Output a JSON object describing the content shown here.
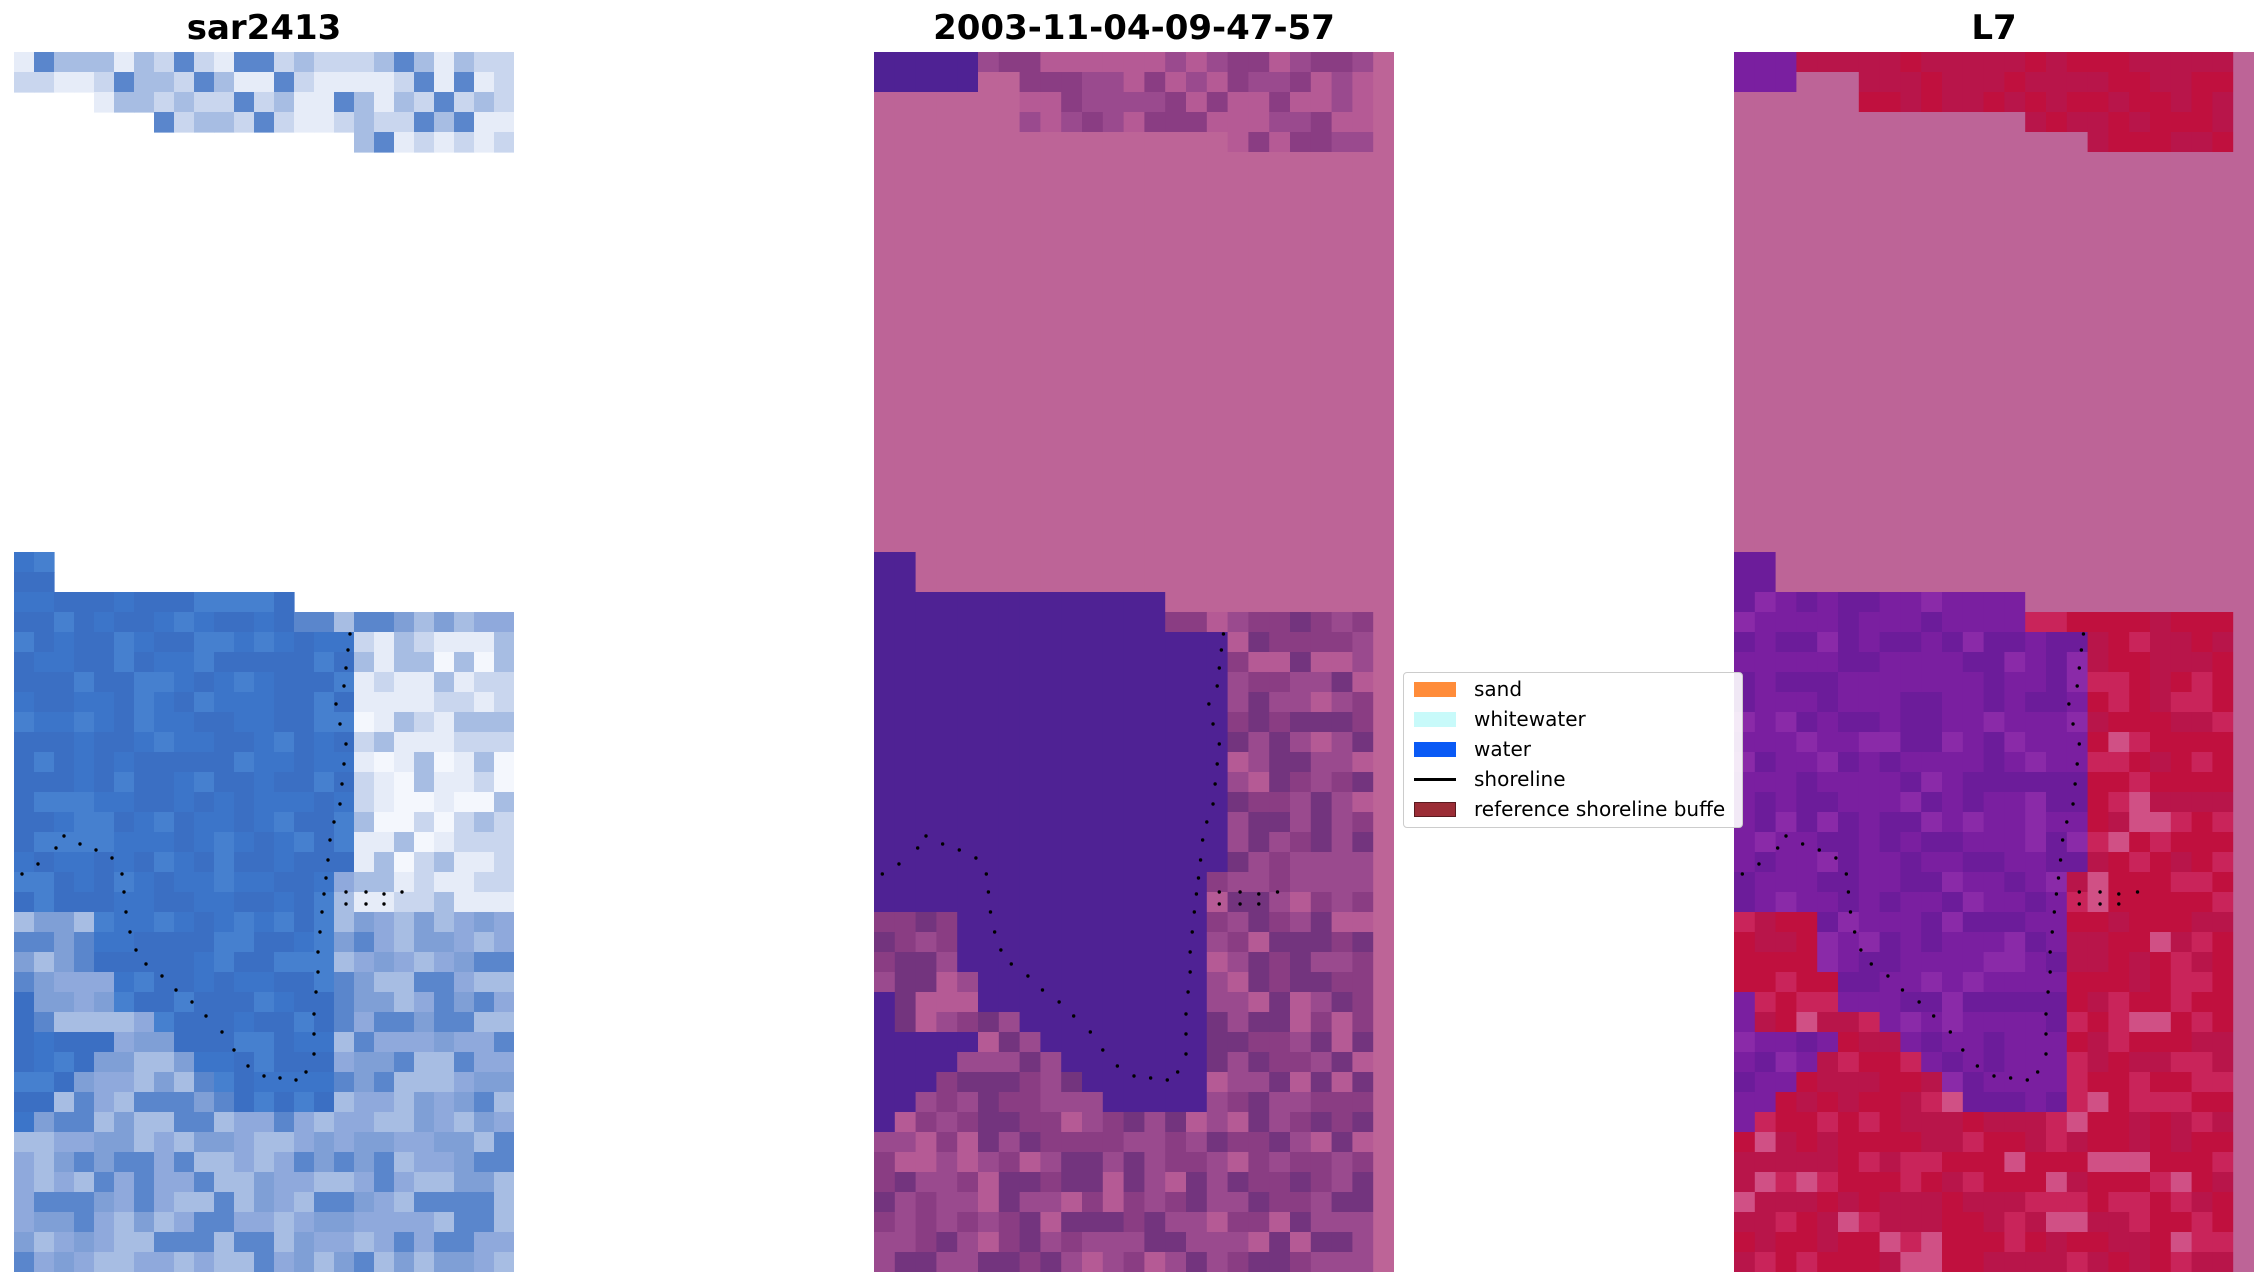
{
  "panels": [
    {
      "title": "sar2413",
      "palette": [
        "#3b6fc3",
        "#5a86cc",
        "#7f9fd6",
        "#a7bde3",
        "#c9d6ee",
        "#e6ecf8",
        "#f4f7fd",
        "#8fa9dc"
      ]
    },
    {
      "title": "2003-11-04-09-47-57",
      "palette": [
        "#4f2294",
        "#9a4a8e",
        "#b55a95",
        "#8a3d83",
        "#bd6497",
        "#73347e"
      ]
    },
    {
      "title": "L7",
      "palette": [
        "#c0103e",
        "#b8154a",
        "#c9245a",
        "#7a1fa0",
        "#6c1c9a",
        "#bd6497",
        "#d05085"
      ]
    }
  ],
  "legend": {
    "items": [
      {
        "label": "sand",
        "kind": "patch",
        "color": "#ff8c3a"
      },
      {
        "label": "whitewater",
        "kind": "patch",
        "color": "#c8fafa"
      },
      {
        "label": "water",
        "kind": "patch",
        "color": "#0a5af5"
      },
      {
        "label": "shoreline",
        "kind": "line",
        "color": "#000000"
      },
      {
        "label": "reference shoreline buffe",
        "kind": "patch",
        "color": "#9b2d36"
      }
    ]
  },
  "masked_color": "#bd6497",
  "shoreline_color": "#000000"
}
